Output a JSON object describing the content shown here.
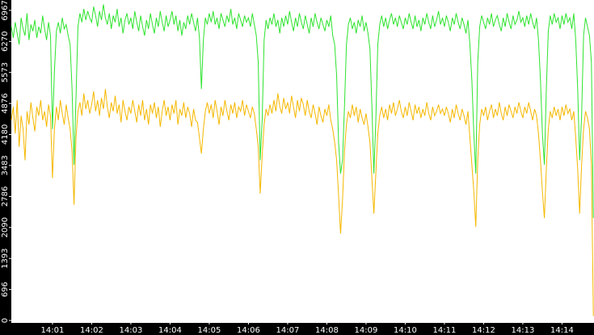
{
  "chart_data": {
    "type": "line",
    "categories": [
      null,
      null,
      null,
      null,
      null,
      null,
      null,
      null,
      null,
      null,
      null,
      null,
      null,
      null,
      null,
      null,
      null,
      null,
      null,
      null,
      null,
      "14:01",
      null,
      null,
      null,
      null,
      null,
      null,
      null,
      null,
      null,
      null,
      null,
      null,
      null,
      null,
      null,
      null,
      null,
      null,
      null,
      "14:02",
      null,
      null,
      null,
      null,
      null,
      null,
      null,
      null,
      null,
      null,
      null,
      null,
      null,
      null,
      null,
      null,
      null,
      null,
      null,
      "14:03",
      null,
      null,
      null,
      null,
      null,
      null,
      null,
      null,
      null,
      null,
      null,
      null,
      null,
      null,
      null,
      null,
      null,
      null,
      null,
      "14:04",
      null,
      null,
      null,
      null,
      null,
      null,
      null,
      null,
      null,
      null,
      null,
      null,
      null,
      null,
      null,
      null,
      null,
      null,
      null,
      "14:05",
      null,
      null,
      null,
      null,
      null,
      null,
      null,
      null,
      null,
      null,
      null,
      null,
      null,
      null,
      null,
      null,
      null,
      null,
      null,
      "14:06",
      null,
      null,
      null,
      null,
      null,
      null,
      null,
      null,
      null,
      null,
      null,
      null,
      null,
      null,
      null,
      null,
      null,
      null,
      null,
      "14:07",
      null,
      null,
      null,
      null,
      null,
      null,
      null,
      null,
      null,
      null,
      null,
      null,
      null,
      null,
      null,
      null,
      null,
      null,
      null,
      "14:08",
      null,
      null,
      null,
      null,
      null,
      null,
      null,
      null,
      null,
      null,
      null,
      null,
      null,
      null,
      null,
      null,
      null,
      null,
      null,
      "14:09",
      null,
      null,
      null,
      null,
      null,
      null,
      null,
      null,
      null,
      null,
      null,
      null,
      null,
      null,
      null,
      null,
      null,
      null,
      null,
      "14:10",
      null,
      null,
      null,
      null,
      null,
      null,
      null,
      null,
      null,
      null,
      null,
      null,
      null,
      null,
      null,
      null,
      null,
      null,
      null,
      "14:11",
      null,
      null,
      null,
      null,
      null,
      null,
      null,
      null,
      null,
      null,
      null,
      null,
      null,
      null,
      null,
      null,
      null,
      null,
      null,
      "14:12",
      null,
      null,
      null,
      null,
      null,
      null,
      null,
      null,
      null,
      null,
      null,
      null,
      null,
      null,
      null,
      null,
      null,
      null,
      null,
      "14:13",
      null,
      null,
      null,
      null,
      null,
      null,
      null,
      null,
      null,
      null,
      null,
      null,
      null,
      null,
      null,
      null,
      null,
      null,
      null,
      "14:14",
      null,
      null,
      null,
      null,
      null,
      null,
      null,
      null,
      null,
      null,
      null,
      null,
      null,
      null,
      null,
      null
    ],
    "series": [
      {
        "color": "#2ee32e",
        "values": [
          6600,
          6350,
          6700,
          6450,
          6200,
          6800,
          6550,
          6400,
          6900,
          6300,
          6650,
          6500,
          6750,
          6350,
          6600,
          6450,
          6850,
          6550,
          6300,
          6700,
          6400,
          4300,
          5600,
          6500,
          6700,
          6450,
          6800,
          6550,
          6650,
          6400,
          6200,
          5200,
          3500,
          5000,
          6600,
          6900,
          6700,
          7000,
          6750,
          6950,
          6800,
          6700,
          7050,
          6850,
          6600,
          6950,
          6750,
          7100,
          6800,
          6650,
          6900,
          6550,
          6850,
          6700,
          7000,
          6600,
          6800,
          6450,
          6750,
          6900,
          6650,
          6800,
          6550,
          6950,
          6700,
          6500,
          6850,
          6600,
          6400,
          6750,
          6550,
          6900,
          6650,
          6450,
          6800,
          6600,
          6950,
          6700,
          6500,
          6850,
          6600,
          6750,
          6950,
          6650,
          6850,
          6500,
          6750,
          6400,
          6700,
          6550,
          6850,
          6650,
          6900,
          6700,
          6500,
          6800,
          6350,
          5200,
          6300,
          6800,
          6650,
          6900,
          6700,
          6950,
          6650,
          6800,
          6550,
          6900,
          6750,
          6600,
          6850,
          6700,
          7000,
          6650,
          6800,
          6550,
          6900,
          6750,
          6600,
          6850,
          6700,
          6800,
          6600,
          6900,
          6650,
          6400,
          5800,
          3600,
          4500,
          6300,
          6750,
          6550,
          6800,
          6650,
          6900,
          6600,
          6750,
          6450,
          6800,
          6600,
          6850,
          6650,
          6950,
          6700,
          6500,
          6800,
          6600,
          6900,
          6700,
          6550,
          6850,
          6650,
          6450,
          6800,
          6600,
          6900,
          6700,
          6550,
          6800,
          6650,
          6500,
          6750,
          6600,
          6850,
          6400,
          6200,
          5500,
          4000,
          3300,
          3600,
          4800,
          6200,
          6650,
          6800,
          6550,
          6700,
          6450,
          6750,
          6600,
          6850,
          6500,
          6700,
          6450,
          6100,
          4800,
          3300,
          4500,
          6200,
          6650,
          6850,
          6600,
          6800,
          6550,
          6750,
          6900,
          6650,
          6800,
          6600,
          6850,
          6700,
          6550,
          6800,
          6650,
          6900,
          6700,
          6550,
          6850,
          6600,
          6750,
          6500,
          6800,
          6650,
          6900,
          6700,
          6550,
          6850,
          6600,
          6750,
          6950,
          6650,
          6800,
          6600,
          6850,
          6700,
          6500,
          6800,
          6650,
          6900,
          6700,
          6550,
          6800,
          6650,
          6450,
          6750,
          6200,
          5400,
          4200,
          3300,
          5800,
          6600,
          6850,
          6700,
          6550,
          6800,
          6650,
          6900,
          6600,
          6750,
          6850,
          6650,
          6500,
          6800,
          6600,
          6900,
          6700,
          6550,
          6850,
          6650,
          6750,
          6950,
          6700,
          6800,
          6600,
          6850,
          6650,
          6900,
          6700,
          6550,
          6800,
          6300,
          5400,
          4200,
          3500,
          5200,
          6500,
          6850,
          6650,
          6900,
          6700,
          6800,
          6550,
          6850,
          6650,
          6900,
          6700,
          6800,
          6550,
          6900,
          6300,
          5200,
          3600,
          4600,
          6400,
          6800,
          6600,
          6400,
          5800,
          2300
        ]
      },
      {
        "color": "#f5b800",
        "values": [
          4500,
          4800,
          4200,
          4950,
          3900,
          4600,
          4300,
          3600,
          4700,
          4400,
          4900,
          4550,
          4250,
          4800,
          4600,
          4950,
          4500,
          4700,
          4350,
          4850,
          4600,
          3200,
          4300,
          4800,
          4500,
          4950,
          4650,
          4400,
          4850,
          4550,
          4300,
          3800,
          2600,
          4100,
          4700,
          4900,
          4600,
          5100,
          4750,
          4950,
          4650,
          4850,
          5150,
          4700,
          4950,
          4600,
          5000,
          4750,
          5200,
          4800,
          4550,
          4900,
          4700,
          5050,
          4650,
          4850,
          4450,
          4950,
          4700,
          4500,
          4800,
          4650,
          4950,
          4700,
          4450,
          4850,
          4600,
          4950,
          4500,
          4750,
          4400,
          4850,
          4650,
          4900,
          4550,
          4800,
          4350,
          4700,
          4950,
          4600,
          4800,
          4500,
          4850,
          4650,
          4950,
          4400,
          4750,
          4600,
          4900,
          4550,
          4800,
          4650,
          4350,
          4750,
          4500,
          4450,
          4100,
          3750,
          4300,
          4700,
          4900,
          4650,
          4850,
          4550,
          4950,
          4700,
          4400,
          4800,
          4600,
          4950,
          4700,
          4500,
          4850,
          4650,
          4900,
          4550,
          4800,
          4700,
          4950,
          4600,
          4850,
          4700,
          4550,
          4800,
          4650,
          4300,
          3900,
          2850,
          3700,
          4400,
          4750,
          4600,
          4850,
          4650,
          4950,
          4700,
          5100,
          4800,
          4650,
          5000,
          4750,
          4900,
          4650,
          5050,
          4800,
          4550,
          4950,
          4700,
          5000,
          4850,
          4600,
          4950,
          4700,
          4550,
          4850,
          4650,
          4400,
          4800,
          4600,
          4450,
          4750,
          4600,
          4850,
          4500,
          4300,
          4000,
          3600,
          2800,
          1950,
          2700,
          3800,
          4400,
          4700,
          4550,
          4850,
          4600,
          4800,
          4450,
          4750,
          4550,
          4400,
          4650,
          4350,
          4000,
          3200,
          2400,
          3300,
          4200,
          4600,
          4800,
          4550,
          4750,
          4500,
          4850,
          4650,
          4900,
          4600,
          4750,
          4950,
          4700,
          4550,
          4800,
          4600,
          4900,
          4700,
          4500,
          4850,
          4650,
          4800,
          4550,
          4750,
          4600,
          4900,
          4650,
          4500,
          4800,
          4600,
          4700,
          4850,
          4650,
          4750,
          4600,
          4800,
          4650,
          4450,
          4750,
          4550,
          4850,
          4650,
          4500,
          4750,
          4600,
          4400,
          4700,
          4100,
          3500,
          2900,
          2100,
          3600,
          4400,
          4750,
          4600,
          4800,
          4500,
          4700,
          4850,
          4550,
          4750,
          4600,
          4900,
          4650,
          4500,
          4800,
          4600,
          4850,
          4700,
          4550,
          4800,
          4650,
          4900,
          4700,
          4550,
          4800,
          4650,
          4900,
          4700,
          4500,
          4750,
          4600,
          4200,
          3600,
          2900,
          2300,
          3400,
          4300,
          4700,
          4550,
          4800,
          4600,
          4750,
          4500,
          4800,
          4600,
          4850,
          4650,
          4750,
          4500,
          4700,
          4100,
          3400,
          2400,
          3500,
          4300,
          4700,
          4550,
          4300,
          3500,
          100
        ]
      }
    ],
    "ylim": [
      0,
      7200
    ],
    "yticks": [
      0,
      696,
      1393,
      2090,
      2786,
      3483,
      4180,
      4876,
      5573,
      6270,
      6967
    ]
  }
}
